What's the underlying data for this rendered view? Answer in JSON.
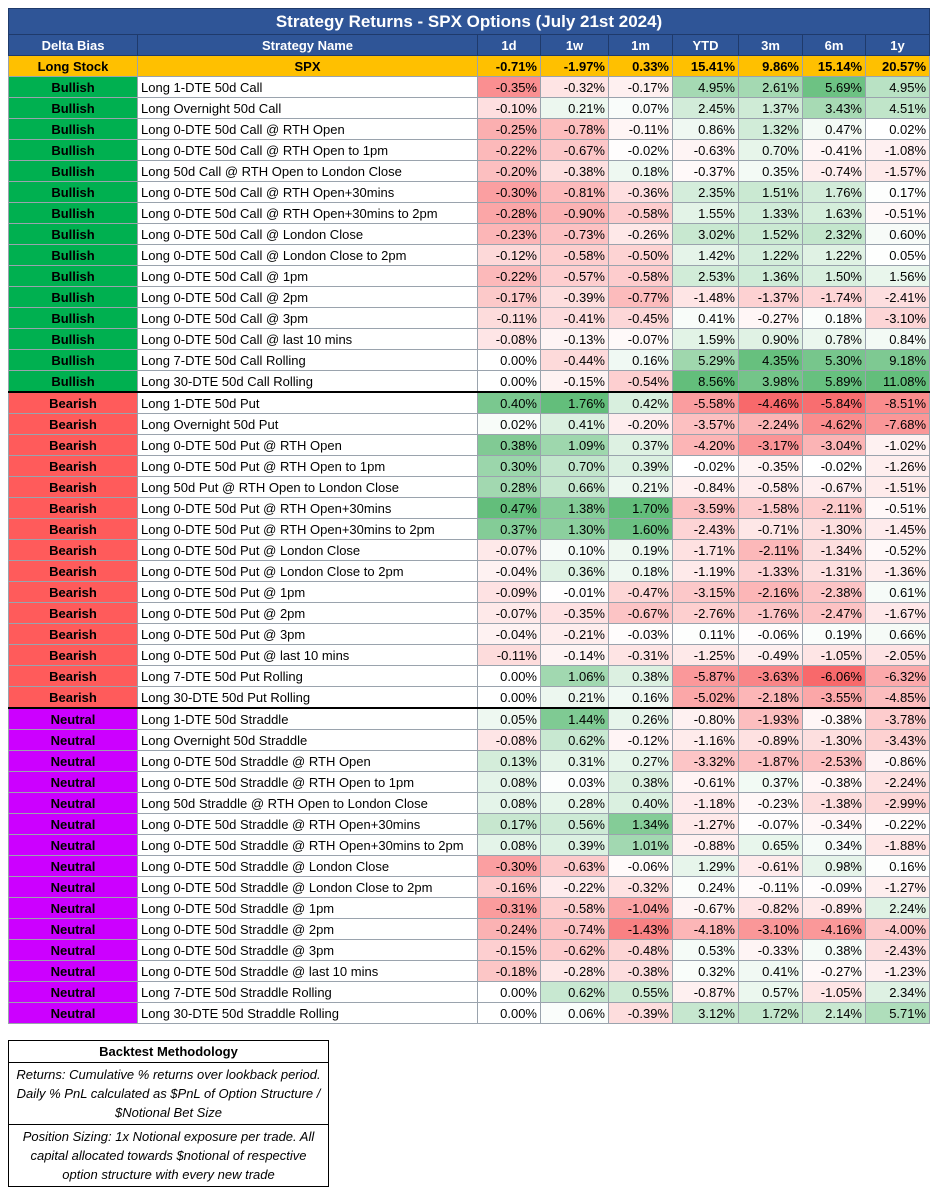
{
  "title": "Strategy Returns - SPX Options (July 21st 2024)",
  "headers": [
    "Delta Bias",
    "Strategy Name",
    "1d",
    "1w",
    "1m",
    "YTD",
    "3m",
    "6m",
    "1y"
  ],
  "benchmark": {
    "bias": "Long Stock",
    "name": "SPX",
    "values": [
      "-0.71%",
      "-1.97%",
      "0.33%",
      "15.41%",
      "9.86%",
      "15.14%",
      "20.57%"
    ]
  },
  "colors": {
    "header": "#2f5597",
    "bullish": "#00b050",
    "bearish": "#ff5b5b",
    "neutral": "#cc00ff",
    "benchmark": "#ffc000",
    "positive": "#63be7b",
    "negative": "#f8696b"
  },
  "rows": [
    {
      "bias": "Bullish",
      "name": "Long 1-DTE 50d Call",
      "values": [
        "-0.35%",
        "-0.32%",
        "-0.17%",
        "4.95%",
        "2.61%",
        "5.69%",
        "4.95%"
      ]
    },
    {
      "bias": "Bullish",
      "name": "Long Overnight 50d Call",
      "values": [
        "-0.10%",
        "0.21%",
        "0.07%",
        "2.45%",
        "1.37%",
        "3.43%",
        "4.51%"
      ]
    },
    {
      "bias": "Bullish",
      "name": "Long 0-DTE 50d Call @ RTH Open",
      "values": [
        "-0.25%",
        "-0.78%",
        "-0.11%",
        "0.86%",
        "1.32%",
        "0.47%",
        "0.02%"
      ]
    },
    {
      "bias": "Bullish",
      "name": "Long 0-DTE 50d Call @ RTH Open to 1pm",
      "values": [
        "-0.22%",
        "-0.67%",
        "-0.02%",
        "-0.63%",
        "0.70%",
        "-0.41%",
        "-1.08%"
      ]
    },
    {
      "bias": "Bullish",
      "name": "Long 50d Call @ RTH Open to London Close",
      "values": [
        "-0.20%",
        "-0.38%",
        "0.18%",
        "-0.37%",
        "0.35%",
        "-0.74%",
        "-1.57%"
      ]
    },
    {
      "bias": "Bullish",
      "name": "Long 0-DTE 50d Call @ RTH Open+30mins",
      "values": [
        "-0.30%",
        "-0.81%",
        "-0.36%",
        "2.35%",
        "1.51%",
        "1.76%",
        "0.17%"
      ]
    },
    {
      "bias": "Bullish",
      "name": "Long 0-DTE 50d Call @ RTH Open+30mins to 2pm",
      "values": [
        "-0.28%",
        "-0.90%",
        "-0.58%",
        "1.55%",
        "1.33%",
        "1.63%",
        "-0.51%"
      ]
    },
    {
      "bias": "Bullish",
      "name": "Long 0-DTE 50d Call @ London Close",
      "values": [
        "-0.23%",
        "-0.73%",
        "-0.26%",
        "3.02%",
        "1.52%",
        "2.32%",
        "0.60%"
      ]
    },
    {
      "bias": "Bullish",
      "name": "Long 0-DTE 50d Call @ London Close to 2pm",
      "values": [
        "-0.12%",
        "-0.58%",
        "-0.50%",
        "1.42%",
        "1.22%",
        "1.22%",
        "0.05%"
      ]
    },
    {
      "bias": "Bullish",
      "name": "Long 0-DTE 50d Call @ 1pm",
      "values": [
        "-0.22%",
        "-0.57%",
        "-0.58%",
        "2.53%",
        "1.36%",
        "1.50%",
        "1.56%"
      ]
    },
    {
      "bias": "Bullish",
      "name": "Long 0-DTE 50d Call @ 2pm",
      "values": [
        "-0.17%",
        "-0.39%",
        "-0.77%",
        "-1.48%",
        "-1.37%",
        "-1.74%",
        "-2.41%"
      ]
    },
    {
      "bias": "Bullish",
      "name": "Long 0-DTE 50d Call @ 3pm",
      "values": [
        "-0.11%",
        "-0.41%",
        "-0.45%",
        "0.41%",
        "-0.27%",
        "0.18%",
        "-3.10%"
      ]
    },
    {
      "bias": "Bullish",
      "name": "Long 0-DTE 50d Call @ last 10 mins",
      "values": [
        "-0.08%",
        "-0.13%",
        "-0.07%",
        "1.59%",
        "0.90%",
        "0.78%",
        "0.84%"
      ]
    },
    {
      "bias": "Bullish",
      "name": "Long 7-DTE 50d Call Rolling",
      "values": [
        "0.00%",
        "-0.44%",
        "0.16%",
        "5.29%",
        "4.35%",
        "5.30%",
        "9.18%"
      ]
    },
    {
      "bias": "Bullish",
      "name": "Long 30-DTE 50d Call Rolling",
      "values": [
        "0.00%",
        "-0.15%",
        "-0.54%",
        "8.56%",
        "3.98%",
        "5.89%",
        "11.08%"
      ]
    },
    {
      "bias": "Bearish",
      "name": "Long 1-DTE 50d Put",
      "values": [
        "0.40%",
        "1.76%",
        "0.42%",
        "-5.58%",
        "-4.46%",
        "-5.84%",
        "-8.51%"
      ]
    },
    {
      "bias": "Bearish",
      "name": "Long Overnight 50d Put",
      "values": [
        "0.02%",
        "0.41%",
        "-0.20%",
        "-3.57%",
        "-2.24%",
        "-4.62%",
        "-7.68%"
      ]
    },
    {
      "bias": "Bearish",
      "name": "Long 0-DTE 50d Put @ RTH Open",
      "values": [
        "0.38%",
        "1.09%",
        "0.37%",
        "-4.20%",
        "-3.17%",
        "-3.04%",
        "-1.02%"
      ]
    },
    {
      "bias": "Bearish",
      "name": "Long 0-DTE 50d Put @ RTH Open to 1pm",
      "values": [
        "0.30%",
        "0.70%",
        "0.39%",
        "-0.02%",
        "-0.35%",
        "-0.02%",
        "-1.26%"
      ]
    },
    {
      "bias": "Bearish",
      "name": "Long 50d Put @ RTH Open to London Close",
      "values": [
        "0.28%",
        "0.66%",
        "0.21%",
        "-0.84%",
        "-0.58%",
        "-0.67%",
        "-1.51%"
      ]
    },
    {
      "bias": "Bearish",
      "name": "Long 0-DTE 50d Put @ RTH Open+30mins",
      "values": [
        "0.47%",
        "1.38%",
        "1.70%",
        "-3.59%",
        "-1.58%",
        "-2.11%",
        "-0.51%"
      ]
    },
    {
      "bias": "Bearish",
      "name": "Long 0-DTE 50d Put @ RTH Open+30mins to 2pm",
      "values": [
        "0.37%",
        "1.30%",
        "1.60%",
        "-2.43%",
        "-0.71%",
        "-1.30%",
        "-1.45%"
      ]
    },
    {
      "bias": "Bearish",
      "name": "Long 0-DTE 50d Put @ London Close",
      "values": [
        "-0.07%",
        "0.10%",
        "0.19%",
        "-1.71%",
        "-2.11%",
        "-1.34%",
        "-0.52%"
      ]
    },
    {
      "bias": "Bearish",
      "name": "Long 0-DTE 50d Put @ London Close to 2pm",
      "values": [
        "-0.04%",
        "0.36%",
        "0.18%",
        "-1.19%",
        "-1.33%",
        "-1.31%",
        "-1.36%"
      ]
    },
    {
      "bias": "Bearish",
      "name": "Long 0-DTE 50d Put @ 1pm",
      "values": [
        "-0.09%",
        "-0.01%",
        "-0.47%",
        "-3.15%",
        "-2.16%",
        "-2.38%",
        "0.61%"
      ]
    },
    {
      "bias": "Bearish",
      "name": "Long 0-DTE 50d Put @ 2pm",
      "values": [
        "-0.07%",
        "-0.35%",
        "-0.67%",
        "-2.76%",
        "-1.76%",
        "-2.47%",
        "-1.67%"
      ]
    },
    {
      "bias": "Bearish",
      "name": "Long 0-DTE 50d Put @ 3pm",
      "values": [
        "-0.04%",
        "-0.21%",
        "-0.03%",
        "0.11%",
        "-0.06%",
        "0.19%",
        "0.66%"
      ]
    },
    {
      "bias": "Bearish",
      "name": "Long 0-DTE 50d Put @ last 10 mins",
      "values": [
        "-0.11%",
        "-0.14%",
        "-0.31%",
        "-1.25%",
        "-0.49%",
        "-1.05%",
        "-2.05%"
      ]
    },
    {
      "bias": "Bearish",
      "name": "Long 7-DTE 50d Put Rolling",
      "values": [
        "0.00%",
        "1.06%",
        "0.38%",
        "-5.87%",
        "-3.63%",
        "-6.06%",
        "-6.32%"
      ]
    },
    {
      "bias": "Bearish",
      "name": "Long 30-DTE 50d Put Rolling",
      "values": [
        "0.00%",
        "0.21%",
        "0.16%",
        "-5.02%",
        "-2.18%",
        "-3.55%",
        "-4.85%"
      ]
    },
    {
      "bias": "Neutral",
      "name": "Long 1-DTE 50d Straddle",
      "values": [
        "0.05%",
        "1.44%",
        "0.26%",
        "-0.80%",
        "-1.93%",
        "-0.38%",
        "-3.78%"
      ]
    },
    {
      "bias": "Neutral",
      "name": "Long Overnight 50d Straddle",
      "values": [
        "-0.08%",
        "0.62%",
        "-0.12%",
        "-1.16%",
        "-0.89%",
        "-1.30%",
        "-3.43%"
      ]
    },
    {
      "bias": "Neutral",
      "name": "Long 0-DTE 50d Straddle @ RTH Open",
      "values": [
        "0.13%",
        "0.31%",
        "0.27%",
        "-3.32%",
        "-1.87%",
        "-2.53%",
        "-0.86%"
      ]
    },
    {
      "bias": "Neutral",
      "name": "Long 0-DTE 50d Straddle @ RTH Open to 1pm",
      "values": [
        "0.08%",
        "0.03%",
        "0.38%",
        "-0.61%",
        "0.37%",
        "-0.38%",
        "-2.24%"
      ]
    },
    {
      "bias": "Neutral",
      "name": "Long 50d Straddle @ RTH Open to London Close",
      "values": [
        "0.08%",
        "0.28%",
        "0.40%",
        "-1.18%",
        "-0.23%",
        "-1.38%",
        "-2.99%"
      ]
    },
    {
      "bias": "Neutral",
      "name": "Long 0-DTE 50d Straddle @ RTH Open+30mins",
      "values": [
        "0.17%",
        "0.56%",
        "1.34%",
        "-1.27%",
        "-0.07%",
        "-0.34%",
        "-0.22%"
      ]
    },
    {
      "bias": "Neutral",
      "name": "Long 0-DTE 50d Straddle @ RTH Open+30mins to 2pm",
      "values": [
        "0.08%",
        "0.39%",
        "1.01%",
        "-0.88%",
        "0.65%",
        "0.34%",
        "-1.88%"
      ]
    },
    {
      "bias": "Neutral",
      "name": "Long 0-DTE 50d Straddle @ London Close",
      "values": [
        "-0.30%",
        "-0.63%",
        "-0.06%",
        "1.29%",
        "-0.61%",
        "0.98%",
        "0.16%"
      ]
    },
    {
      "bias": "Neutral",
      "name": "Long 0-DTE 50d Straddle @ London Close to 2pm",
      "values": [
        "-0.16%",
        "-0.22%",
        "-0.32%",
        "0.24%",
        "-0.11%",
        "-0.09%",
        "-1.27%"
      ]
    },
    {
      "bias": "Neutral",
      "name": "Long 0-DTE 50d Straddle @ 1pm",
      "values": [
        "-0.31%",
        "-0.58%",
        "-1.04%",
        "-0.67%",
        "-0.82%",
        "-0.89%",
        "2.24%"
      ]
    },
    {
      "bias": "Neutral",
      "name": "Long 0-DTE 50d Straddle @ 2pm",
      "values": [
        "-0.24%",
        "-0.74%",
        "-1.43%",
        "-4.18%",
        "-3.10%",
        "-4.16%",
        "-4.00%"
      ]
    },
    {
      "bias": "Neutral",
      "name": "Long 0-DTE 50d Straddle @ 3pm",
      "values": [
        "-0.15%",
        "-0.62%",
        "-0.48%",
        "0.53%",
        "-0.33%",
        "0.38%",
        "-2.43%"
      ]
    },
    {
      "bias": "Neutral",
      "name": "Long 0-DTE 50d Straddle @ last 10 mins",
      "values": [
        "-0.18%",
        "-0.28%",
        "-0.38%",
        "0.32%",
        "0.41%",
        "-0.27%",
        "-1.23%"
      ]
    },
    {
      "bias": "Neutral",
      "name": "Long 7-DTE 50d Straddle Rolling",
      "values": [
        "0.00%",
        "0.62%",
        "0.55%",
        "-0.87%",
        "0.57%",
        "-1.05%",
        "2.34%"
      ]
    },
    {
      "bias": "Neutral",
      "name": "Long 30-DTE 50d Straddle Rolling",
      "values": [
        "0.00%",
        "0.06%",
        "-0.39%",
        "3.12%",
        "1.72%",
        "2.14%",
        "5.71%"
      ]
    }
  ],
  "methodology": {
    "title": "Backtest Methodology",
    "returns": "Returns: Cumulative % returns over lookback period. Daily % PnL calculated as $PnL of Option Structure / $Notional Bet Size",
    "sizing": "Position Sizing: 1x Notional exposure per trade. All capital allocated towards $notional of respective option structure with every new trade"
  }
}
